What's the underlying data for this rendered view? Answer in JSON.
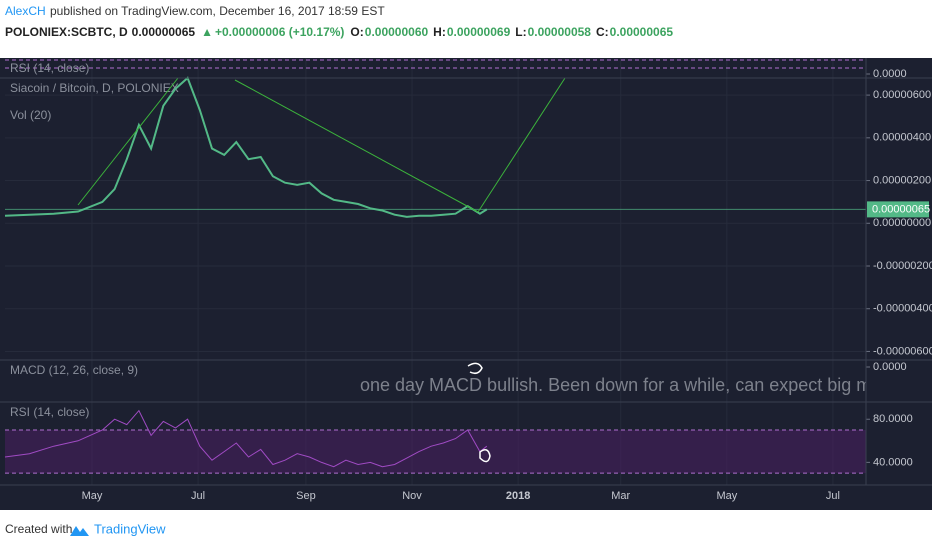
{
  "header": {
    "author": "AlexCH",
    "published": "published on TradingView.com, December 16, 2017 18:59 EST",
    "symbol": "POLONIEX:SCBTC, D",
    "price": "0.00000065",
    "arrow": "▲",
    "change": "+0.00000006 (+10.17%)",
    "ohlc": [
      {
        "key": "O:",
        "value": "0.00000060"
      },
      {
        "key": "H:",
        "value": "0.00000069"
      },
      {
        "key": "L:",
        "value": "0.00000058"
      },
      {
        "key": "C:",
        "value": "0.00000065"
      }
    ]
  },
  "chart_data": [
    {
      "type": "indicator",
      "title": "RSI (14, close)",
      "ylim": [
        -0.25,
        1
      ],
      "yticks": [
        {
          "value": 0,
          "label": "0.0000"
        }
      ]
    },
    {
      "type": "line",
      "title": "Siacoin / Bitcoin, D, POLONIEX",
      "subtitle": "Vol (20)",
      "color": "#53b987",
      "x": [
        0,
        14,
        28,
        42,
        56,
        63,
        70,
        77,
        84,
        91,
        98,
        105,
        112,
        119,
        126,
        133,
        140,
        147,
        154,
        161,
        168,
        175,
        182,
        189,
        196,
        203,
        210,
        217,
        224,
        231,
        238,
        245,
        252,
        259,
        266,
        273,
        277
      ],
      "values": [
        3.5e-07,
        4e-07,
        4.5e-07,
        5.5e-07,
        1e-06,
        1.6e-06,
        3e-06,
        4.6e-06,
        3.5e-06,
        5.5e-06,
        6.3e-06,
        6.8e-06,
        5.3e-06,
        3.5e-06,
        3.2e-06,
        3.8e-06,
        3e-06,
        3.1e-06,
        2.2e-06,
        1.9e-06,
        1.8e-06,
        1.9e-06,
        1.4e-06,
        1.1e-06,
        1e-06,
        9e-07,
        7e-07,
        6e-07,
        4e-07,
        3e-07,
        3.5e-07,
        3.5e-07,
        4e-07,
        4.5e-07,
        8e-07,
        4.5e-07,
        6.5e-07
      ],
      "last_label": "0.00000065",
      "xlim": [
        0,
        495
      ],
      "ylim": [
        -6.4e-06,
        6.8e-06
      ],
      "yticks": [
        {
          "value": 6e-06,
          "label": "0.00000600"
        },
        {
          "value": 4e-06,
          "label": "0.00000400"
        },
        {
          "value": 2e-06,
          "label": "0.00000200"
        },
        {
          "value": 0,
          "label": "0.00000000"
        },
        {
          "value": -2e-06,
          "label": "-0.00000200"
        },
        {
          "value": -4e-06,
          "label": "-0.00000400"
        },
        {
          "value": -6e-06,
          "label": "-0.00000600"
        }
      ]
    },
    {
      "type": "indicator",
      "title": "MACD (12, 26, close, 9)",
      "ylim": [
        -1,
        0.2
      ],
      "yticks": [
        {
          "value": 0,
          "label": "0.0000"
        }
      ],
      "annotation": "one day MACD bullish. Been down for a while, can expect big m"
    },
    {
      "type": "line",
      "title": "RSI (14, close)",
      "color": "#a04bc4",
      "bands": [
        30,
        70
      ],
      "band_color": "#4a1f63",
      "x": [
        0,
        14,
        28,
        42,
        56,
        63,
        70,
        77,
        84,
        91,
        98,
        105,
        112,
        119,
        126,
        133,
        140,
        147,
        154,
        161,
        168,
        175,
        182,
        189,
        196,
        203,
        210,
        217,
        224,
        231,
        238,
        245,
        252,
        259,
        266,
        273,
        277
      ],
      "values": [
        45,
        48,
        55,
        60,
        70,
        80,
        75,
        88,
        65,
        78,
        72,
        80,
        55,
        42,
        50,
        58,
        45,
        52,
        38,
        42,
        48,
        45,
        40,
        36,
        42,
        38,
        40,
        36,
        38,
        44,
        50,
        55,
        58,
        62,
        70,
        50,
        55
      ],
      "xlim": [
        0,
        495
      ],
      "ylim": [
        19,
        96
      ],
      "yticks": [
        {
          "value": 80,
          "label": "80.0000"
        },
        {
          "value": 40,
          "label": "40.0000"
        }
      ],
      "xticks": [
        {
          "value": 50,
          "label": "May"
        },
        {
          "value": 111,
          "label": "Jul"
        },
        {
          "value": 173,
          "label": "Sep"
        },
        {
          "value": 234,
          "label": "Nov"
        },
        {
          "value": 295,
          "label": "2018"
        },
        {
          "value": 354,
          "label": "Mar"
        },
        {
          "value": 415,
          "label": "May"
        },
        {
          "value": 476,
          "label": "Jul"
        }
      ]
    }
  ],
  "footer": {
    "created": "Created with",
    "brand": "TradingView"
  }
}
